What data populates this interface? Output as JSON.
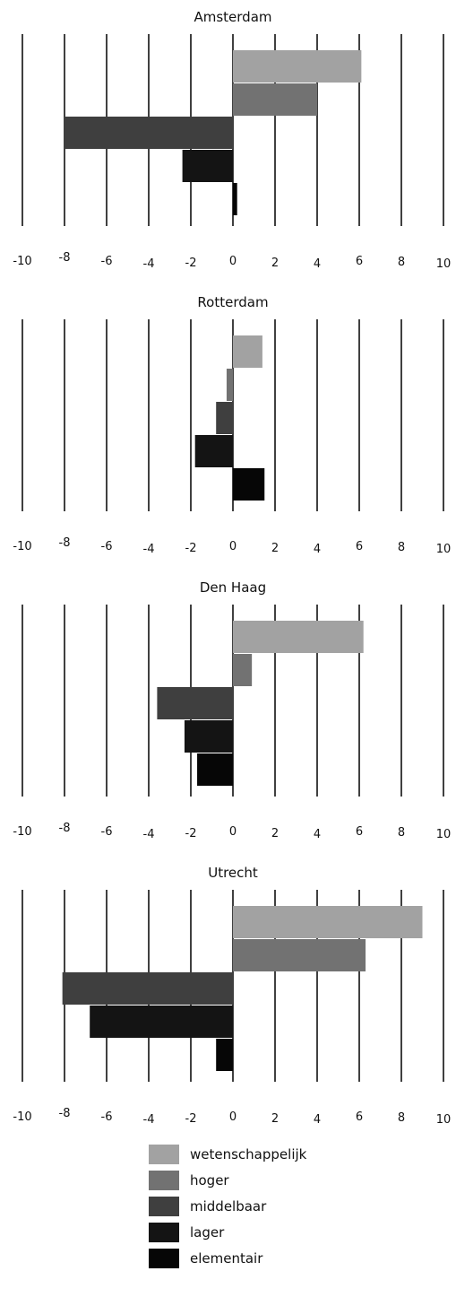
{
  "colors": {
    "wetenschappelijk": "#a2a2a2",
    "hoger": "#727272",
    "middelbaar": "#3f3f3f",
    "lager": "#141414",
    "elementair": "#060606",
    "gridline": "#000000"
  },
  "legend": [
    {
      "label": "wetenschappelijk",
      "color": "#a2a2a2"
    },
    {
      "label": "hoger",
      "color": "#727272"
    },
    {
      "label": "middelbaar",
      "color": "#3f3f3f"
    },
    {
      "label": "lager",
      "color": "#141414"
    },
    {
      "label": "elementair",
      "color": "#060606"
    }
  ],
  "chart_data": [
    {
      "type": "bar",
      "orientation": "horizontal",
      "title": "Amsterdam",
      "categories": [
        "wetenschappelijk",
        "hoger",
        "middelbaar",
        "lager",
        "elementair"
      ],
      "values": [
        6.1,
        4.0,
        -8.0,
        -2.4,
        0.2
      ],
      "xlim": [
        -10,
        10
      ],
      "ticks": [
        "-10",
        "-8",
        "-6",
        "-4",
        "-2",
        "0",
        "2",
        "4",
        "6",
        "8",
        "10"
      ],
      "grid": true
    },
    {
      "type": "bar",
      "orientation": "horizontal",
      "title": "Rotterdam",
      "categories": [
        "wetenschappelijk",
        "hoger",
        "middelbaar",
        "lager",
        "elementair"
      ],
      "values": [
        1.4,
        -0.3,
        -0.8,
        -1.8,
        1.5
      ],
      "xlim": [
        -10,
        10
      ],
      "ticks": [
        "-10",
        "-8",
        "-6",
        "-4",
        "-2",
        "0",
        "2",
        "4",
        "6",
        "8",
        "10"
      ],
      "grid": true
    },
    {
      "type": "bar",
      "orientation": "horizontal",
      "title": "Den Haag",
      "categories": [
        "wetenschappelijk",
        "hoger",
        "middelbaar",
        "lager",
        "elementair"
      ],
      "values": [
        6.2,
        0.9,
        -3.6,
        -2.3,
        -1.7
      ],
      "xlim": [
        -10,
        10
      ],
      "ticks": [
        "-10",
        "-8",
        "-6",
        "-4",
        "-2",
        "0",
        "2",
        "4",
        "6",
        "8",
        "10"
      ],
      "grid": true
    },
    {
      "type": "bar",
      "orientation": "horizontal",
      "title": "Utrecht",
      "categories": [
        "wetenschappelijk",
        "hoger",
        "middelbaar",
        "lager",
        "elementair"
      ],
      "values": [
        9.0,
        6.3,
        -8.1,
        -6.8,
        -0.8
      ],
      "xlim": [
        -10,
        10
      ],
      "ticks": [
        "-10",
        "-8",
        "-6",
        "-4",
        "-2",
        "0",
        "2",
        "4",
        "6",
        "8",
        "10"
      ],
      "grid": true
    }
  ]
}
